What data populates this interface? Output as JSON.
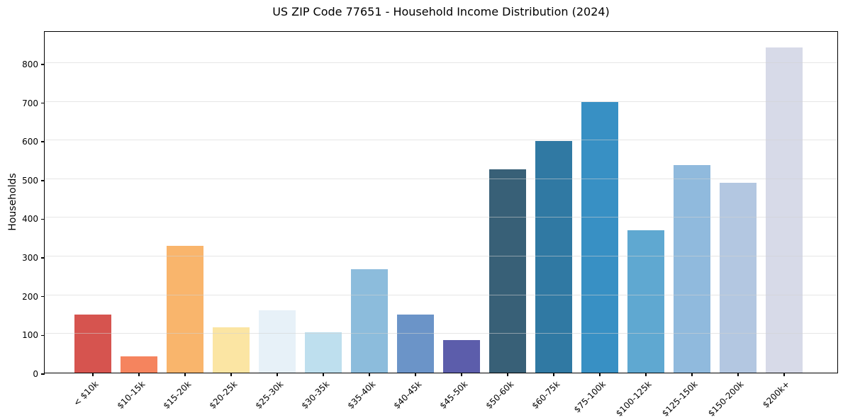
{
  "chart_data": {
    "type": "bar",
    "title": "US ZIP Code 77651 - Household Income Distribution (2024)",
    "ylabel": "Households",
    "xlabel": "",
    "categories": [
      "< $10k",
      "$10-15k",
      "$15-20k",
      "$20-25k",
      "$25-30k",
      "$30-35k",
      "$35-40k",
      "$40-45k",
      "$45-50k",
      "$50-60k",
      "$60-75k",
      "$75-100k",
      "$100-125k",
      "$125-150k",
      "$150-200k",
      "$200k+"
    ],
    "values": [
      150,
      43,
      327,
      117,
      161,
      104,
      267,
      151,
      85,
      525,
      598,
      700,
      367,
      537,
      491,
      841
    ],
    "bar_colors": [
      "#d6544f",
      "#f5845e",
      "#f9b56c",
      "#fbe5a3",
      "#e7f1f8",
      "#bedfee",
      "#8cbcdc",
      "#6b94c8",
      "#5c5dab",
      "#386077",
      "#3079a3",
      "#3890c4",
      "#5fa8d1",
      "#90badd",
      "#b3c7e1",
      "#d7dae8"
    ],
    "yticks": [
      0,
      100,
      200,
      300,
      400,
      500,
      600,
      700,
      800
    ],
    "ylim": [
      0,
      884
    ],
    "grid": "horizontal",
    "legend": "none",
    "background_color": "#ffffff",
    "axis_color": "#000000",
    "gridline_color": "#e6e6e6"
  }
}
